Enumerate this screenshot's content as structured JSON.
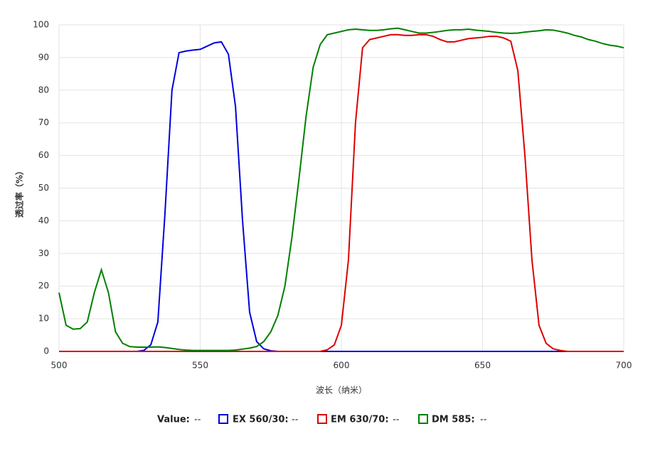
{
  "chart_data": {
    "type": "line",
    "y_label": "透过率（%）",
    "x_label": "波长（纳米）",
    "value_label": "Value:",
    "value_readout": "--",
    "xlim": [
      500,
      700
    ],
    "xticks": [
      500,
      550,
      600,
      650,
      700
    ],
    "ylim": [
      0,
      100
    ],
    "yticks": [
      0,
      10,
      20,
      30,
      40,
      50,
      60,
      70,
      80,
      90,
      100
    ],
    "grid": true,
    "x": [
      500,
      502.5,
      505,
      507.5,
      510,
      512.5,
      515,
      517.5,
      520,
      522.5,
      525,
      527.5,
      530,
      532.5,
      535,
      537.5,
      540,
      542.5,
      545,
      547.5,
      550,
      552.5,
      555,
      557.5,
      560,
      562.5,
      565,
      567.5,
      570,
      572.5,
      575,
      577.5,
      580,
      582.5,
      585,
      587.5,
      590,
      592.5,
      595,
      597.5,
      600,
      602.5,
      605,
      607.5,
      610,
      612.5,
      615,
      617.5,
      620,
      622.5,
      625,
      627.5,
      630,
      632.5,
      635,
      637.5,
      640,
      642.5,
      645,
      647.5,
      650,
      652.5,
      655,
      657.5,
      660,
      662.5,
      665,
      667.5,
      670,
      672.5,
      675,
      677.5,
      680,
      682.5,
      685,
      687.5,
      690,
      692.5,
      695,
      697.5,
      700
    ],
    "series": [
      {
        "name": "EX 560/30:",
        "readout": "--",
        "color": "#0000dd",
        "values": [
          0,
          0,
          0,
          0,
          0,
          0,
          0,
          0,
          0,
          0,
          0,
          0,
          0.3,
          2,
          9,
          42,
          80,
          91.5,
          92,
          92.3,
          92.5,
          93.5,
          94.5,
          94.8,
          91,
          75,
          40,
          12,
          3,
          0.8,
          0.2,
          0,
          0,
          0,
          0,
          0,
          0,
          0,
          0,
          0,
          0,
          0,
          0,
          0,
          0,
          0,
          0,
          0,
          0,
          0,
          0,
          0,
          0,
          0,
          0,
          0,
          0,
          0,
          0,
          0,
          0,
          0,
          0,
          0,
          0,
          0,
          0,
          0,
          0,
          0,
          0,
          0,
          0,
          0,
          0,
          0,
          0,
          0,
          0,
          0,
          0
        ]
      },
      {
        "name": "EM 630/70:",
        "readout": "--",
        "color": "#dd0000",
        "values": [
          0,
          0,
          0,
          0,
          0,
          0,
          0,
          0,
          0,
          0,
          0,
          0,
          0,
          0,
          0,
          0,
          0,
          0,
          0,
          0,
          0,
          0,
          0,
          0,
          0,
          0,
          0,
          0,
          0,
          0,
          0,
          0,
          0,
          0,
          0,
          0,
          0,
          0,
          0.5,
          2,
          8,
          28,
          70,
          93,
          95.5,
          96,
          96.5,
          97,
          97,
          96.8,
          96.8,
          97,
          97,
          96.5,
          95.5,
          94.8,
          94.8,
          95.3,
          95.8,
          96,
          96.2,
          96.5,
          96.5,
          96,
          95,
          86,
          60,
          28,
          8,
          2.5,
          0.8,
          0.3,
          0,
          0,
          0,
          0,
          0,
          0,
          0,
          0,
          0
        ]
      },
      {
        "name": "DM 585:",
        "readout": "--",
        "color": "#008000",
        "values": [
          18,
          8,
          6.8,
          7,
          9,
          18,
          25,
          18,
          6,
          2.5,
          1.5,
          1.3,
          1.3,
          1.3,
          1.4,
          1.2,
          0.9,
          0.6,
          0.4,
          0.3,
          0.3,
          0.3,
          0.3,
          0.3,
          0.3,
          0.4,
          0.7,
          1,
          1.5,
          3,
          6,
          11,
          20,
          35,
          53,
          72,
          87,
          94,
          97,
          97.5,
          98,
          98.5,
          98.7,
          98.5,
          98.3,
          98.3,
          98.5,
          98.8,
          99,
          98.5,
          98,
          97.5,
          97.5,
          97.7,
          98,
          98.3,
          98.5,
          98.5,
          98.7,
          98.4,
          98.2,
          98,
          97.7,
          97.5,
          97.4,
          97.5,
          97.8,
          98,
          98.2,
          98.5,
          98.4,
          98,
          97.5,
          96.8,
          96.3,
          95.5,
          95,
          94.3,
          93.8,
          93.5,
          93
        ]
      }
    ]
  }
}
